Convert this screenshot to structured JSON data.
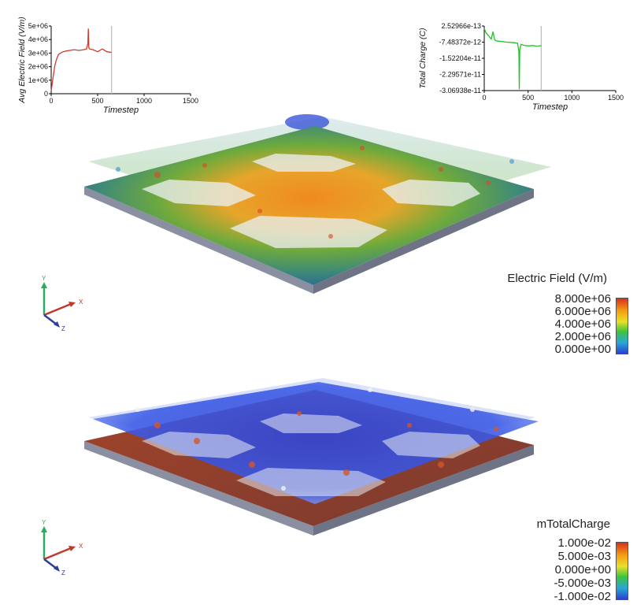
{
  "colors": {
    "ef_line": "#d23a2a",
    "charge_line": "#22c22a",
    "cursor": "#bbbbbb",
    "plate_side": "#7b7f90",
    "axis_x": "#c0392b",
    "axis_y": "#27ae60",
    "axis_z": "#2c3e99"
  },
  "chart_data": [
    {
      "type": "line",
      "title": "",
      "xlabel": "Timestep",
      "ylabel": "Avg Electric Field (V/m)",
      "xlim": [
        0,
        1500
      ],
      "ylim": [
        0,
        5000000
      ],
      "x_ticks": [
        "0",
        "500",
        "1000",
        "1500"
      ],
      "y_ticks": [
        "0",
        "1e+06",
        "2e+06",
        "3e+06",
        "4e+06",
        "5e+06"
      ],
      "cursor_x": 650,
      "series": [
        {
          "x": [
            0,
            20,
            40,
            60,
            80,
            100,
            130,
            160,
            200,
            250,
            300,
            350,
            380,
            395,
            400,
            405,
            415,
            450,
            500,
            550,
            600,
            650
          ],
          "values": [
            200000,
            1200000,
            2100000,
            2600000,
            2900000,
            3000000,
            3100000,
            3150000,
            3200000,
            3250000,
            3200000,
            3250000,
            3300000,
            3700000,
            4800000,
            3400000,
            3300000,
            3250000,
            3100000,
            3300000,
            3100000,
            3050000
          ]
        }
      ]
    },
    {
      "type": "line",
      "title": "",
      "xlabel": "Timestep",
      "ylabel": "Total Charge (C)",
      "xlim": [
        0,
        1500
      ],
      "ylim": [
        -3.06938e-11,
        2.52966e-13
      ],
      "x_ticks": [
        "0",
        "500",
        "1000",
        "1500"
      ],
      "y_ticks": [
        "2.52966e-13",
        "-7.48372e-12",
        "-1.52204e-11",
        "-2.29571e-11",
        "-3.06938e-11"
      ],
      "cursor_x": 650,
      "series": [
        {
          "x": [
            0,
            20,
            50,
            80,
            100,
            120,
            150,
            200,
            250,
            300,
            350,
            380,
            395,
            400,
            405,
            420,
            450,
            500,
            550,
            600,
            650
          ],
          "values": [
            -1e-12,
            -3e-12,
            -4.5e-12,
            -6e-12,
            -2.5e-12,
            -6.5e-12,
            -7e-12,
            -7.2e-12,
            -7.5e-12,
            -7.6e-12,
            -7.8e-12,
            -8e-12,
            -1.2e-11,
            -3e-11,
            -1.1e-11,
            -8.5e-12,
            -9e-12,
            -9.3e-12,
            -9.1e-12,
            -9.4e-12,
            -9.2e-12
          ]
        }
      ]
    }
  ],
  "colorbars": [
    {
      "title": "Electric Field (V/m)",
      "ticks": [
        "8.000e+06",
        "6.000e+06",
        "4.000e+06",
        "2.000e+06",
        "0.000e+00"
      ]
    },
    {
      "title": "mTotalCharge",
      "ticks": [
        "1.000e-02",
        "5.000e-03",
        "0.000e+00",
        "-5.000e-03",
        "-1.000e-02"
      ]
    }
  ],
  "orientation_axes": {
    "x_label": "X",
    "y_label": "Y",
    "z_label": "Z"
  }
}
